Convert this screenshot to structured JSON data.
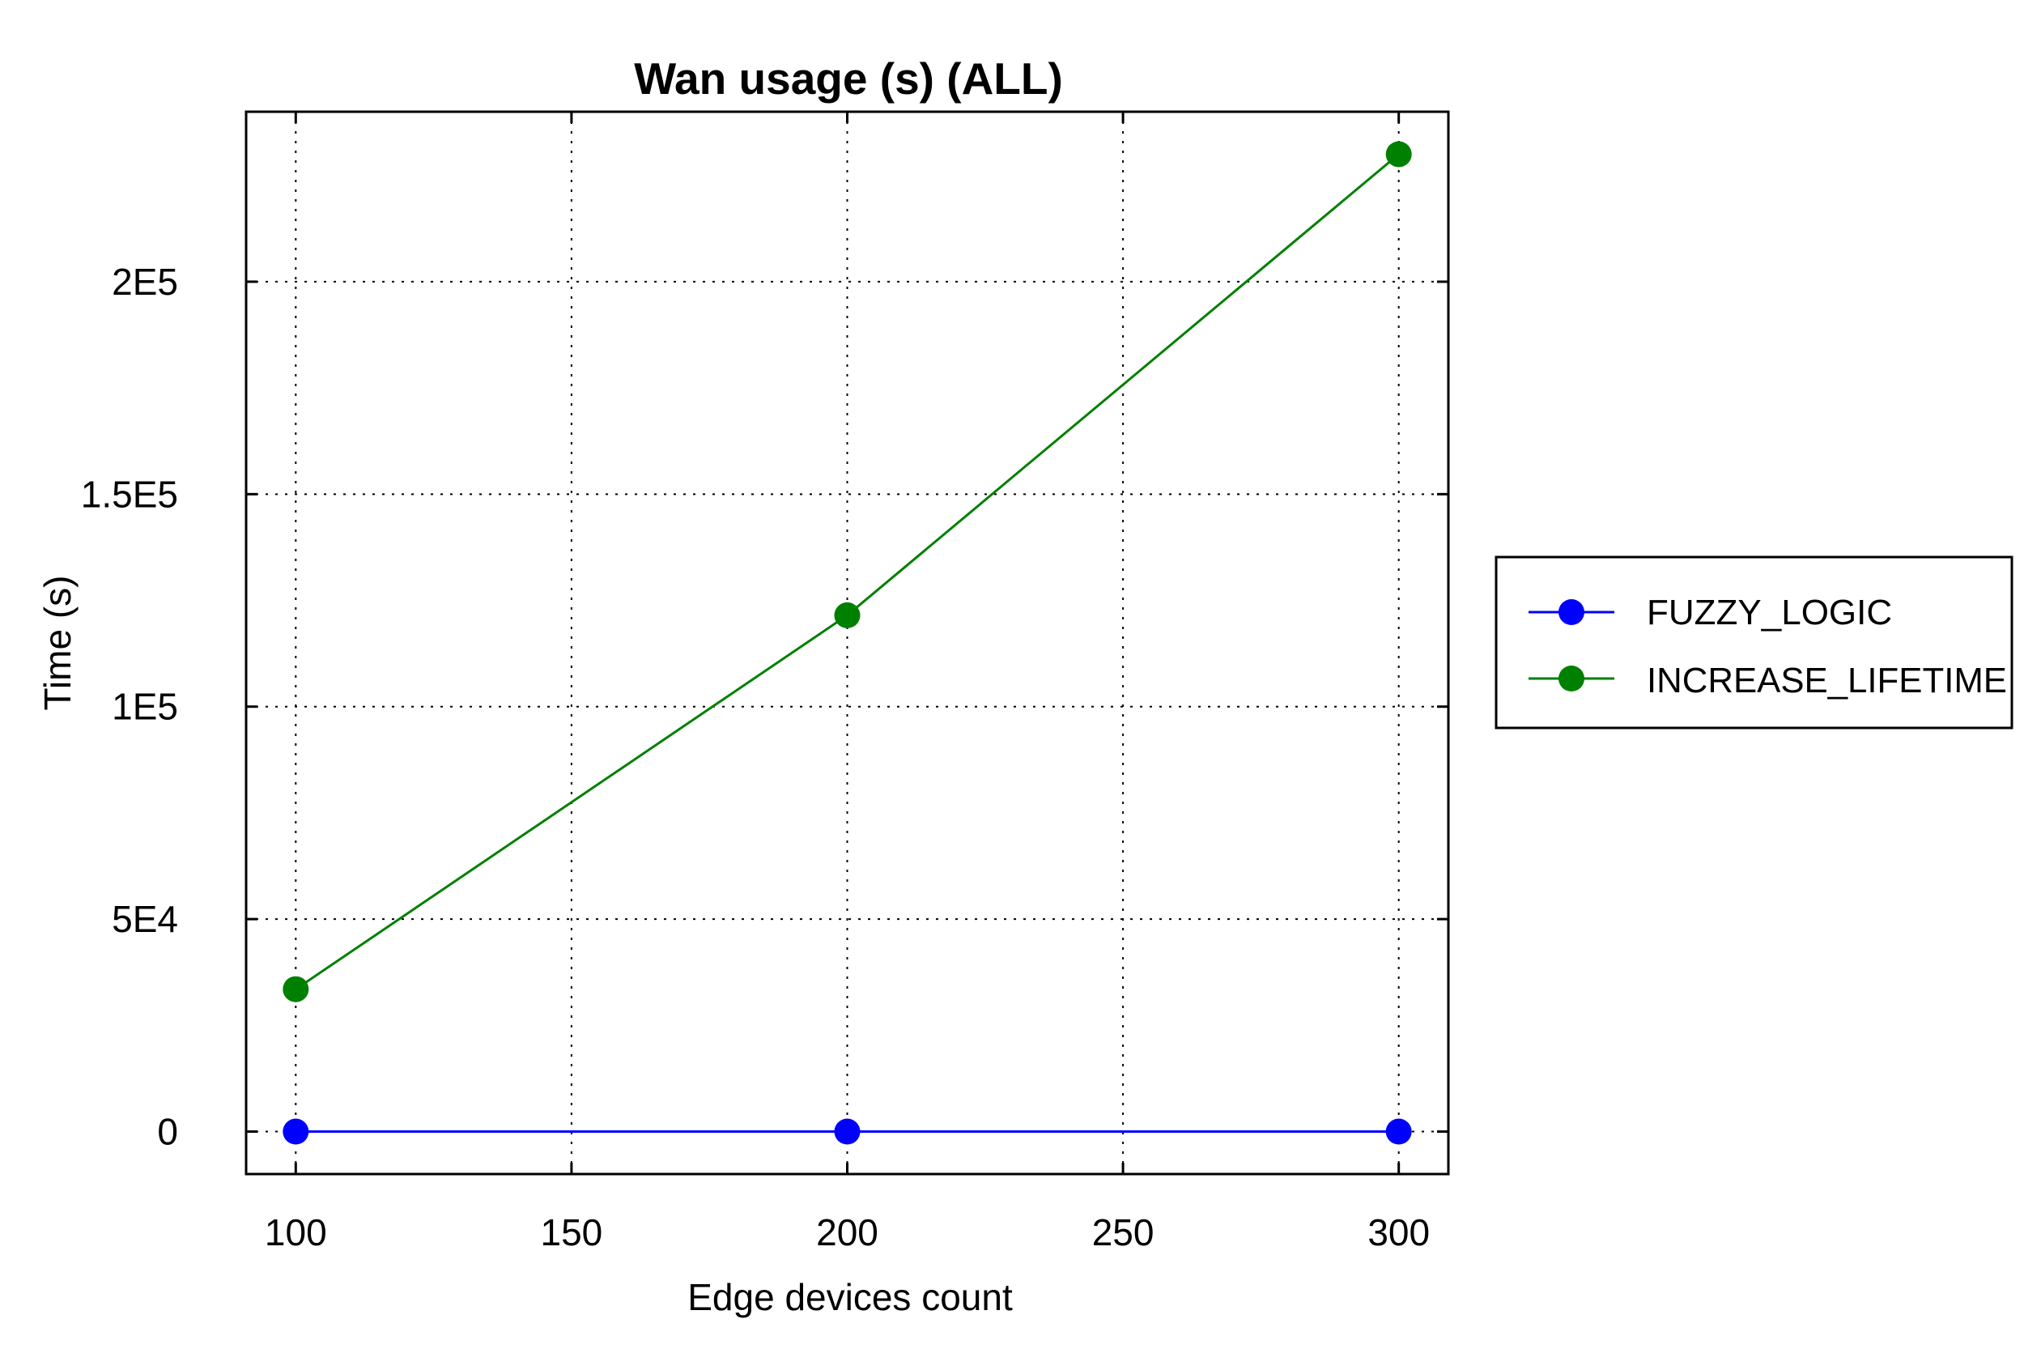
{
  "chart_data": {
    "type": "line",
    "title": "Wan usage (s) (ALL)",
    "xlabel": "Edge devices count",
    "ylabel": "Time (s)",
    "x": [
      100,
      200,
      300
    ],
    "xlim": [
      91,
      309
    ],
    "ylim": [
      -10000,
      240000
    ],
    "xticks": [
      100,
      150,
      200,
      250,
      300
    ],
    "xtick_labels": [
      "100",
      "150",
      "200",
      "250",
      "300"
    ],
    "yticks": [
      0,
      50000,
      100000,
      150000,
      200000
    ],
    "ytick_labels": [
      "0",
      "5E4",
      "1E5",
      "1.5E5",
      "2E5"
    ],
    "grid": true,
    "legend_position": "right",
    "series": [
      {
        "name": "FUZZY_LOGIC",
        "color": "#0000ff",
        "values": [
          0,
          0,
          0
        ]
      },
      {
        "name": "INCREASE_LIFETIME",
        "color": "#008000",
        "values": [
          33500,
          121500,
          230000
        ]
      }
    ]
  }
}
